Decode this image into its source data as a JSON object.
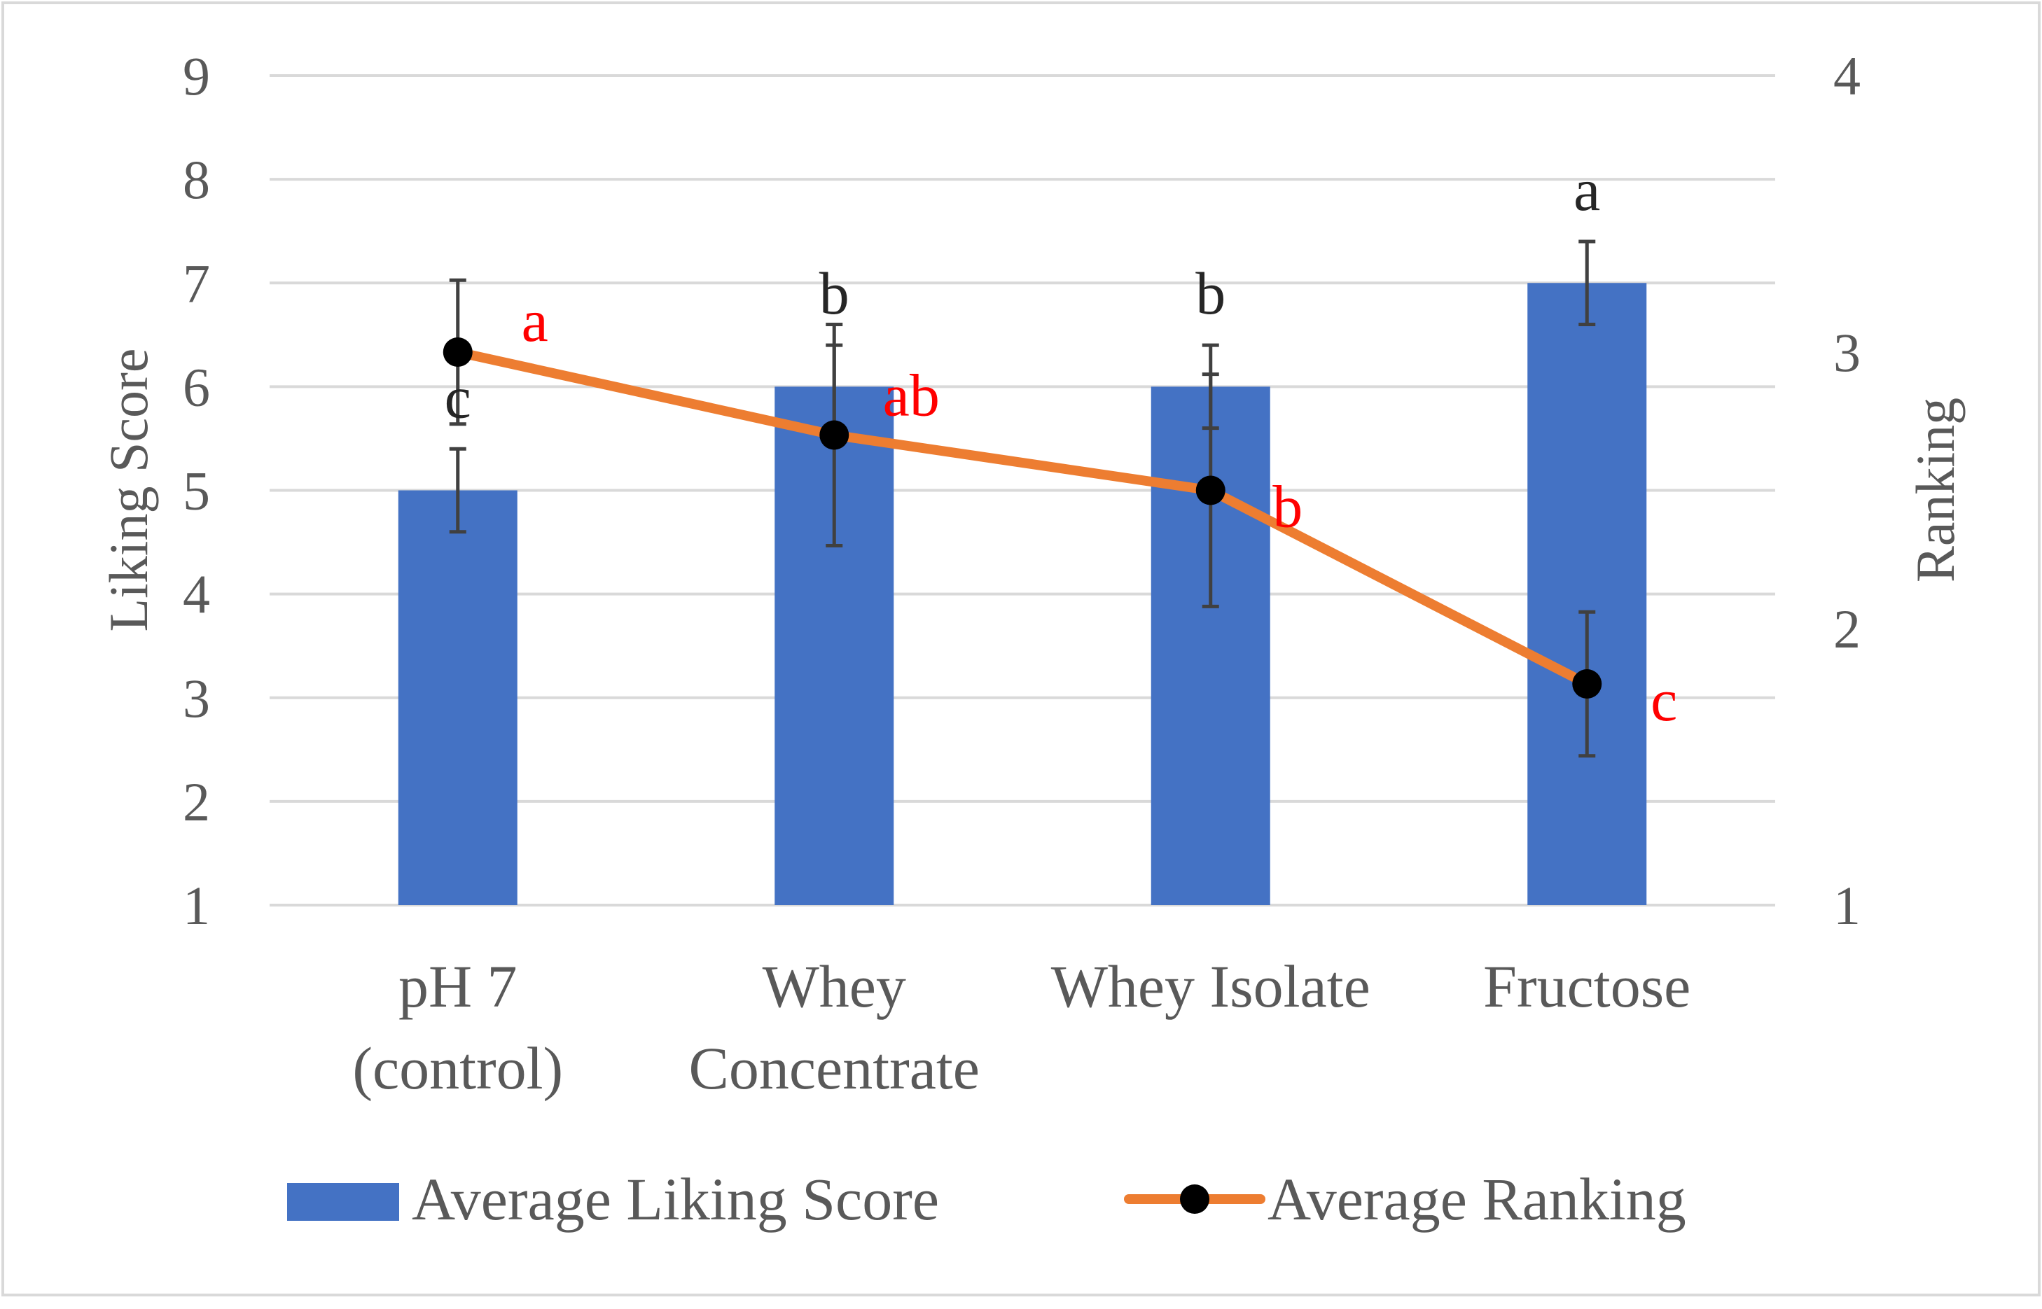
{
  "chart_data": {
    "type": "bar+line",
    "categories": [
      [
        "pH 7",
        "(control)"
      ],
      [
        "Whey",
        "Concentrate"
      ],
      [
        "Whey Isolate"
      ],
      [
        "Fructose"
      ]
    ],
    "ylabel_left": "Liking Score",
    "ylabel_right": "Ranking",
    "ylim_left": [
      1,
      9
    ],
    "ylim_right": [
      1,
      4
    ],
    "yticks_left": [
      "1",
      "2",
      "3",
      "4",
      "5",
      "6",
      "7",
      "8",
      "9"
    ],
    "yticks_right": [
      "1",
      "2",
      "3",
      "4"
    ],
    "grid": true,
    "legend_position": "bottom",
    "series": [
      {
        "name": "Average Liking Score",
        "type": "bar",
        "axis": "left",
        "color": "#4472C4",
        "values": [
          5,
          6,
          6,
          7
        ],
        "error": [
          0.4,
          0.4,
          0.4,
          0.4
        ],
        "letters": [
          "c",
          "b",
          "b",
          "a"
        ],
        "letter_color": "#262626"
      },
      {
        "name": "Average Ranking",
        "type": "line",
        "axis": "right",
        "color": "#ED7D31",
        "marker_color": "#000000",
        "values": [
          3.0,
          2.7,
          2.5,
          1.8
        ],
        "error": [
          0.26,
          0.4,
          0.42,
          0.26
        ],
        "letters": [
          "a",
          "ab",
          "b",
          "c"
        ],
        "letter_color": "#FF0000"
      }
    ],
    "colors": {
      "grid": "#D9D9D9",
      "axis_text": "#595959",
      "error_bar": "#404040",
      "border": "#D9D9D9"
    }
  }
}
